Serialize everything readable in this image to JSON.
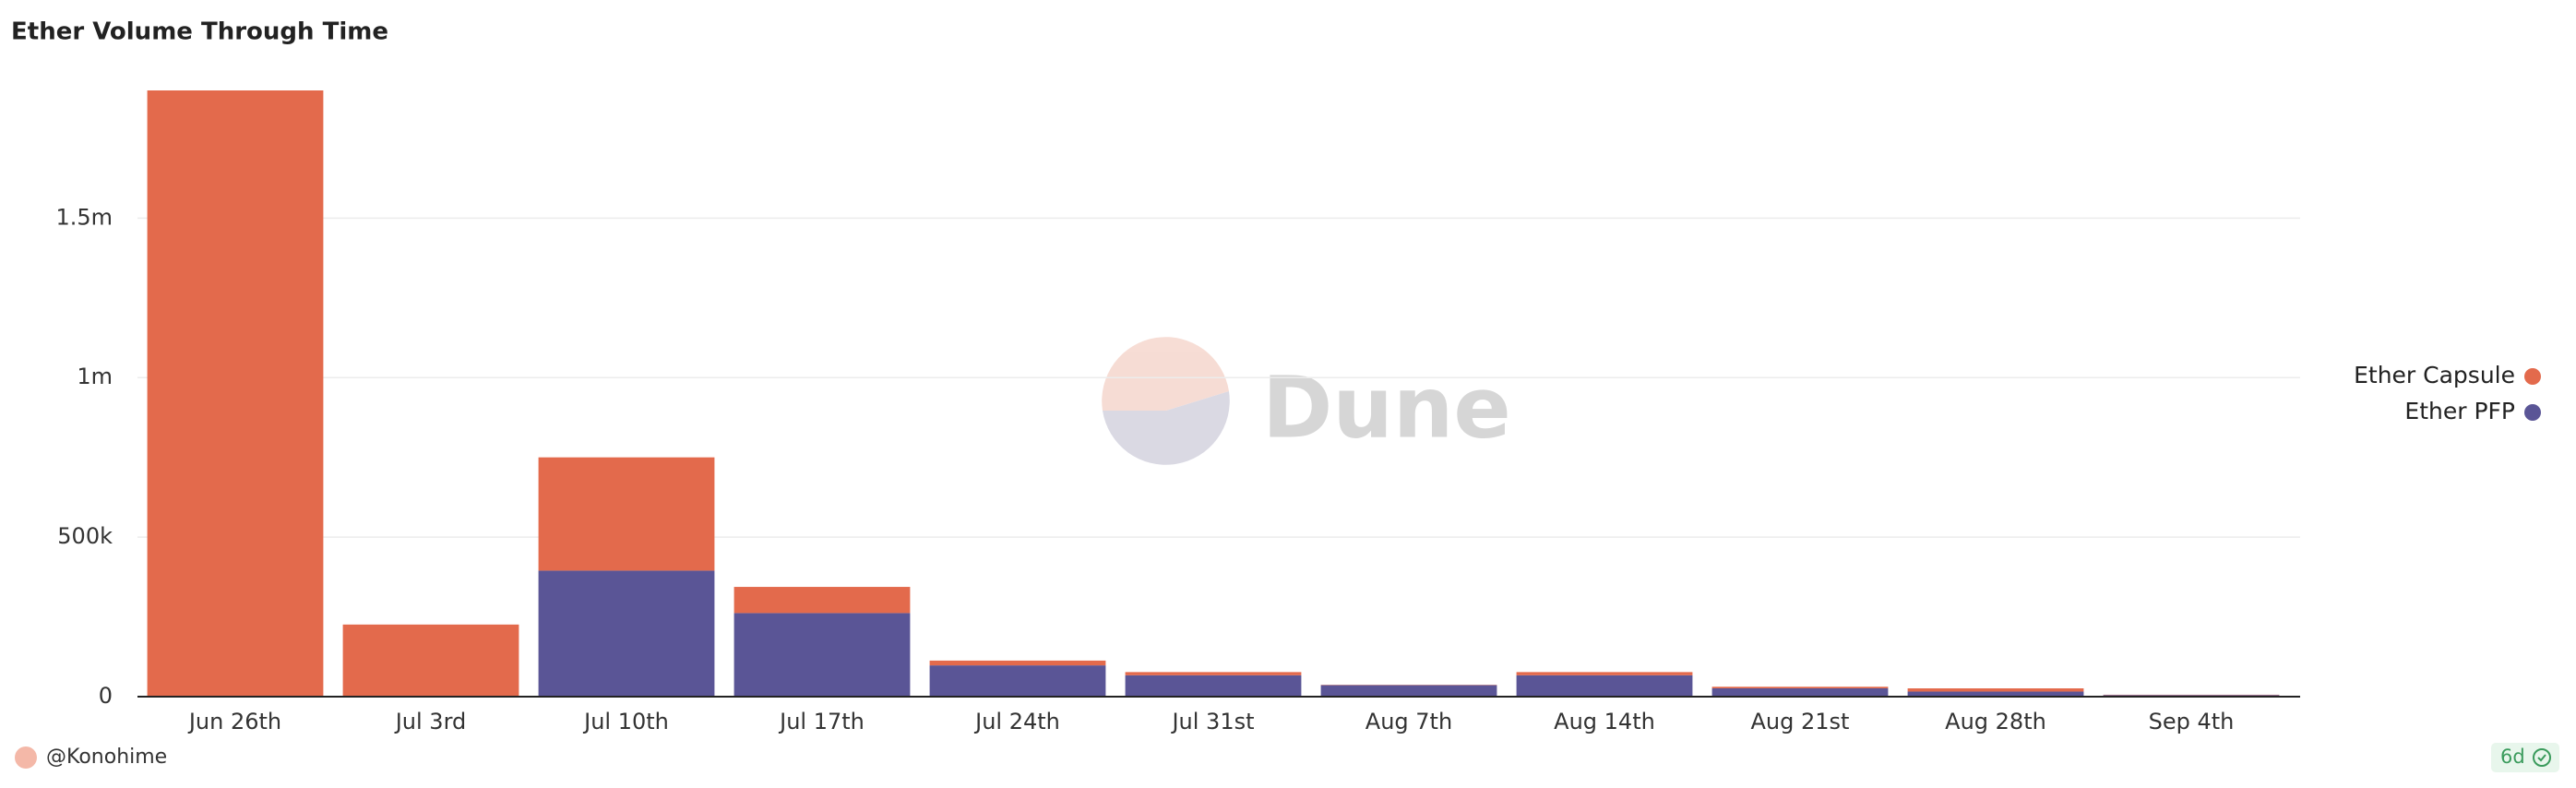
{
  "chart_data": {
    "type": "bar",
    "stacked": true,
    "title": "Ether Volume Through Time",
    "categories": [
      "Jun 26th",
      "Jul 3rd",
      "Jul 10th",
      "Jul 17th",
      "Jul 24th",
      "Jul 31st",
      "Aug 7th",
      "Aug 14th",
      "Aug 21st",
      "Aug 28th",
      "Sep 4th"
    ],
    "series": [
      {
        "name": "Ether Capsule",
        "color": "#e36a4c",
        "values": [
          1900000,
          226000,
          355000,
          82000,
          15000,
          10000,
          1000,
          10000,
          5000,
          10000,
          1000
        ]
      },
      {
        "name": "Ether PFP",
        "color": "#5a5596",
        "values": [
          0,
          0,
          395000,
          262000,
          98000,
          67000,
          36000,
          67000,
          26000,
          16000,
          5000
        ]
      }
    ],
    "ylim": [
      0,
      1900000
    ],
    "yticks": [
      0,
      {
        "value": 500000,
        "label": "500k"
      },
      {
        "value": 1000000,
        "label": "1m"
      },
      {
        "value": 1500000,
        "label": "1.5m"
      }
    ],
    "grid": true,
    "legend": "right"
  },
  "watermark": "Dune",
  "author": "@Konohime",
  "refresh": "6d"
}
